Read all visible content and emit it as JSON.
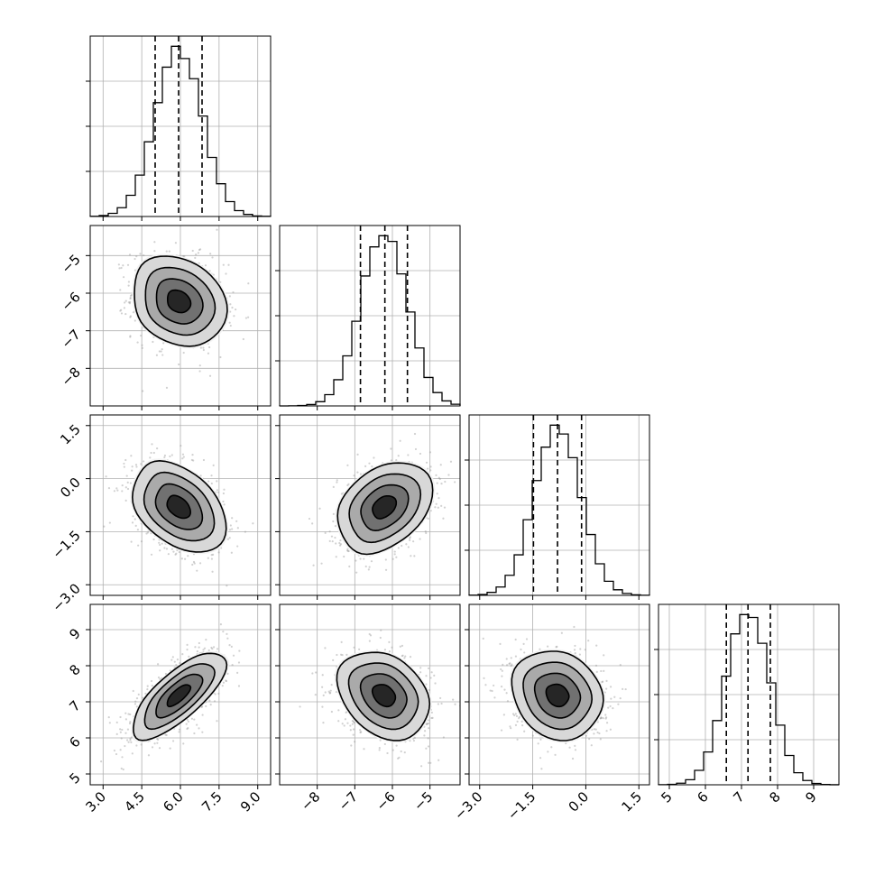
{
  "chart_data": {
    "type": "corner",
    "dimensions": 4,
    "grid": true,
    "axes": [
      {
        "range": [
          2.5,
          9.5
        ],
        "tick_values": [
          3.0,
          4.5,
          6.0,
          7.5,
          9.0
        ],
        "tick_labels": [
          "3.0",
          "4.5",
          "6.0",
          "7.5",
          "9.0"
        ],
        "median": 5.93,
        "q16": 5.02,
        "q84": 6.84,
        "mean": 5.93,
        "sd": 0.9
      },
      {
        "range": [
          -9.0,
          -4.2
        ],
        "tick_values": [
          -8,
          -7,
          -6,
          -5
        ],
        "tick_labels": [
          "−8",
          "−7",
          "−6",
          "−5"
        ],
        "median": -6.2,
        "q16": -6.85,
        "q84": -5.6,
        "mean": -6.22,
        "sd": 0.62
      },
      {
        "range": [
          -3.3,
          1.8
        ],
        "tick_values": [
          -3.0,
          -1.5,
          0.0,
          1.5
        ],
        "tick_labels": [
          "−3.0",
          "−1.5",
          "0.0",
          "1.5"
        ],
        "median": -0.8,
        "q16": -1.48,
        "q84": -0.12,
        "mean": -0.8,
        "sd": 0.65
      },
      {
        "range": [
          4.7,
          9.7
        ],
        "tick_values": [
          5,
          6,
          7,
          8,
          9
        ],
        "tick_labels": [
          "5",
          "6",
          "7",
          "8",
          "9"
        ],
        "median": 7.18,
        "q16": 6.58,
        "q84": 7.8,
        "mean": 7.18,
        "sd": 0.6
      }
    ],
    "correlations": [
      [
        1.0,
        -0.18,
        -0.35,
        0.72
      ],
      [
        -0.18,
        1.0,
        0.3,
        -0.25
      ],
      [
        -0.35,
        0.3,
        1.0,
        -0.15
      ],
      [
        0.72,
        -0.25,
        -0.15,
        1.0
      ]
    ],
    "histogram_bins": 20,
    "contour_levels": [
      0.5,
      1.0,
      1.5,
      2.0
    ],
    "colors": {
      "hist": "#000000",
      "scatter": "#9a9a9a",
      "density": "#000000",
      "grid": "#b0b0b0"
    }
  }
}
